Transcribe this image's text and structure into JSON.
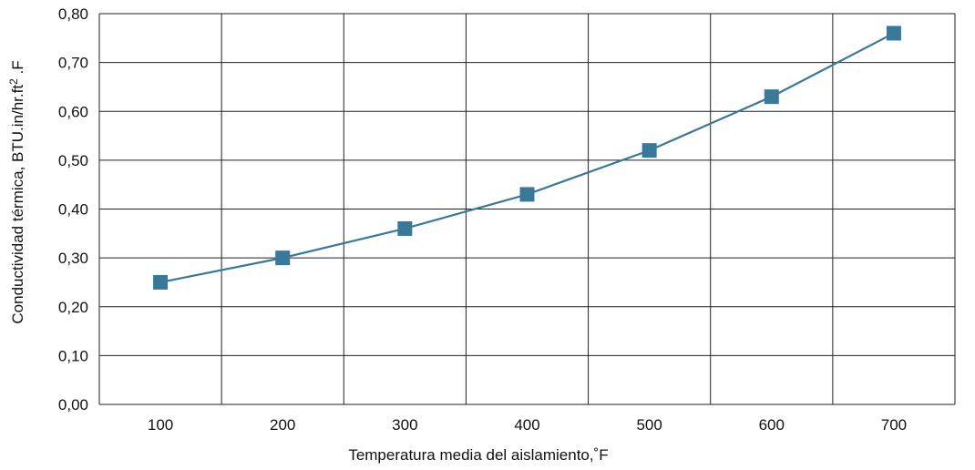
{
  "chart_data": {
    "type": "line",
    "title": "",
    "xlabel": "Temperatura media del aislamiento,˚F",
    "ylabel_main": "Conductividad térmica, BTU.in/hr.ft",
    "ylabel_sup": "2",
    "ylabel_tail": " .F",
    "categories": [
      "100",
      "200",
      "300",
      "400",
      "500",
      "600",
      "700"
    ],
    "y_ticks": [
      "0,00",
      "0,10",
      "0,20",
      "0,30",
      "0,40",
      "0,50",
      "0,60",
      "0,70",
      "0,80"
    ],
    "ylim": [
      0,
      0.8
    ],
    "grid": true,
    "series": [
      {
        "values": [
          0.25,
          0.3,
          0.36,
          0.43,
          0.52,
          0.63,
          0.76
        ],
        "color": "#3a7899",
        "marker": "square"
      }
    ]
  }
}
